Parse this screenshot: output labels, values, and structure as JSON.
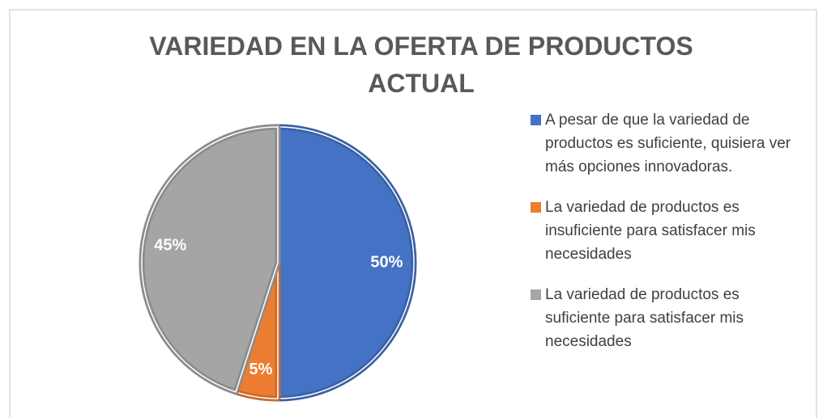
{
  "chart_data": {
    "type": "pie",
    "title": [
      "VARIEDAD EN LA OFERTA DE PRODUCTOS",
      "ACTUAL"
    ],
    "categories": [
      "A pesar de que la variedad de productos es suficiente, quisiera ver más opciones innovadoras.",
      "La variedad de productos es insuficiente para satisfacer mis necesidades",
      "La variedad de productos es suficiente para satisfacer mis necesidades"
    ],
    "values": [
      50,
      5,
      45
    ],
    "value_labels": [
      "50%",
      "5%",
      "45%"
    ],
    "colors": [
      "#4472c4",
      "#ed7d31",
      "#a5a5a5"
    ],
    "legend": "right"
  }
}
